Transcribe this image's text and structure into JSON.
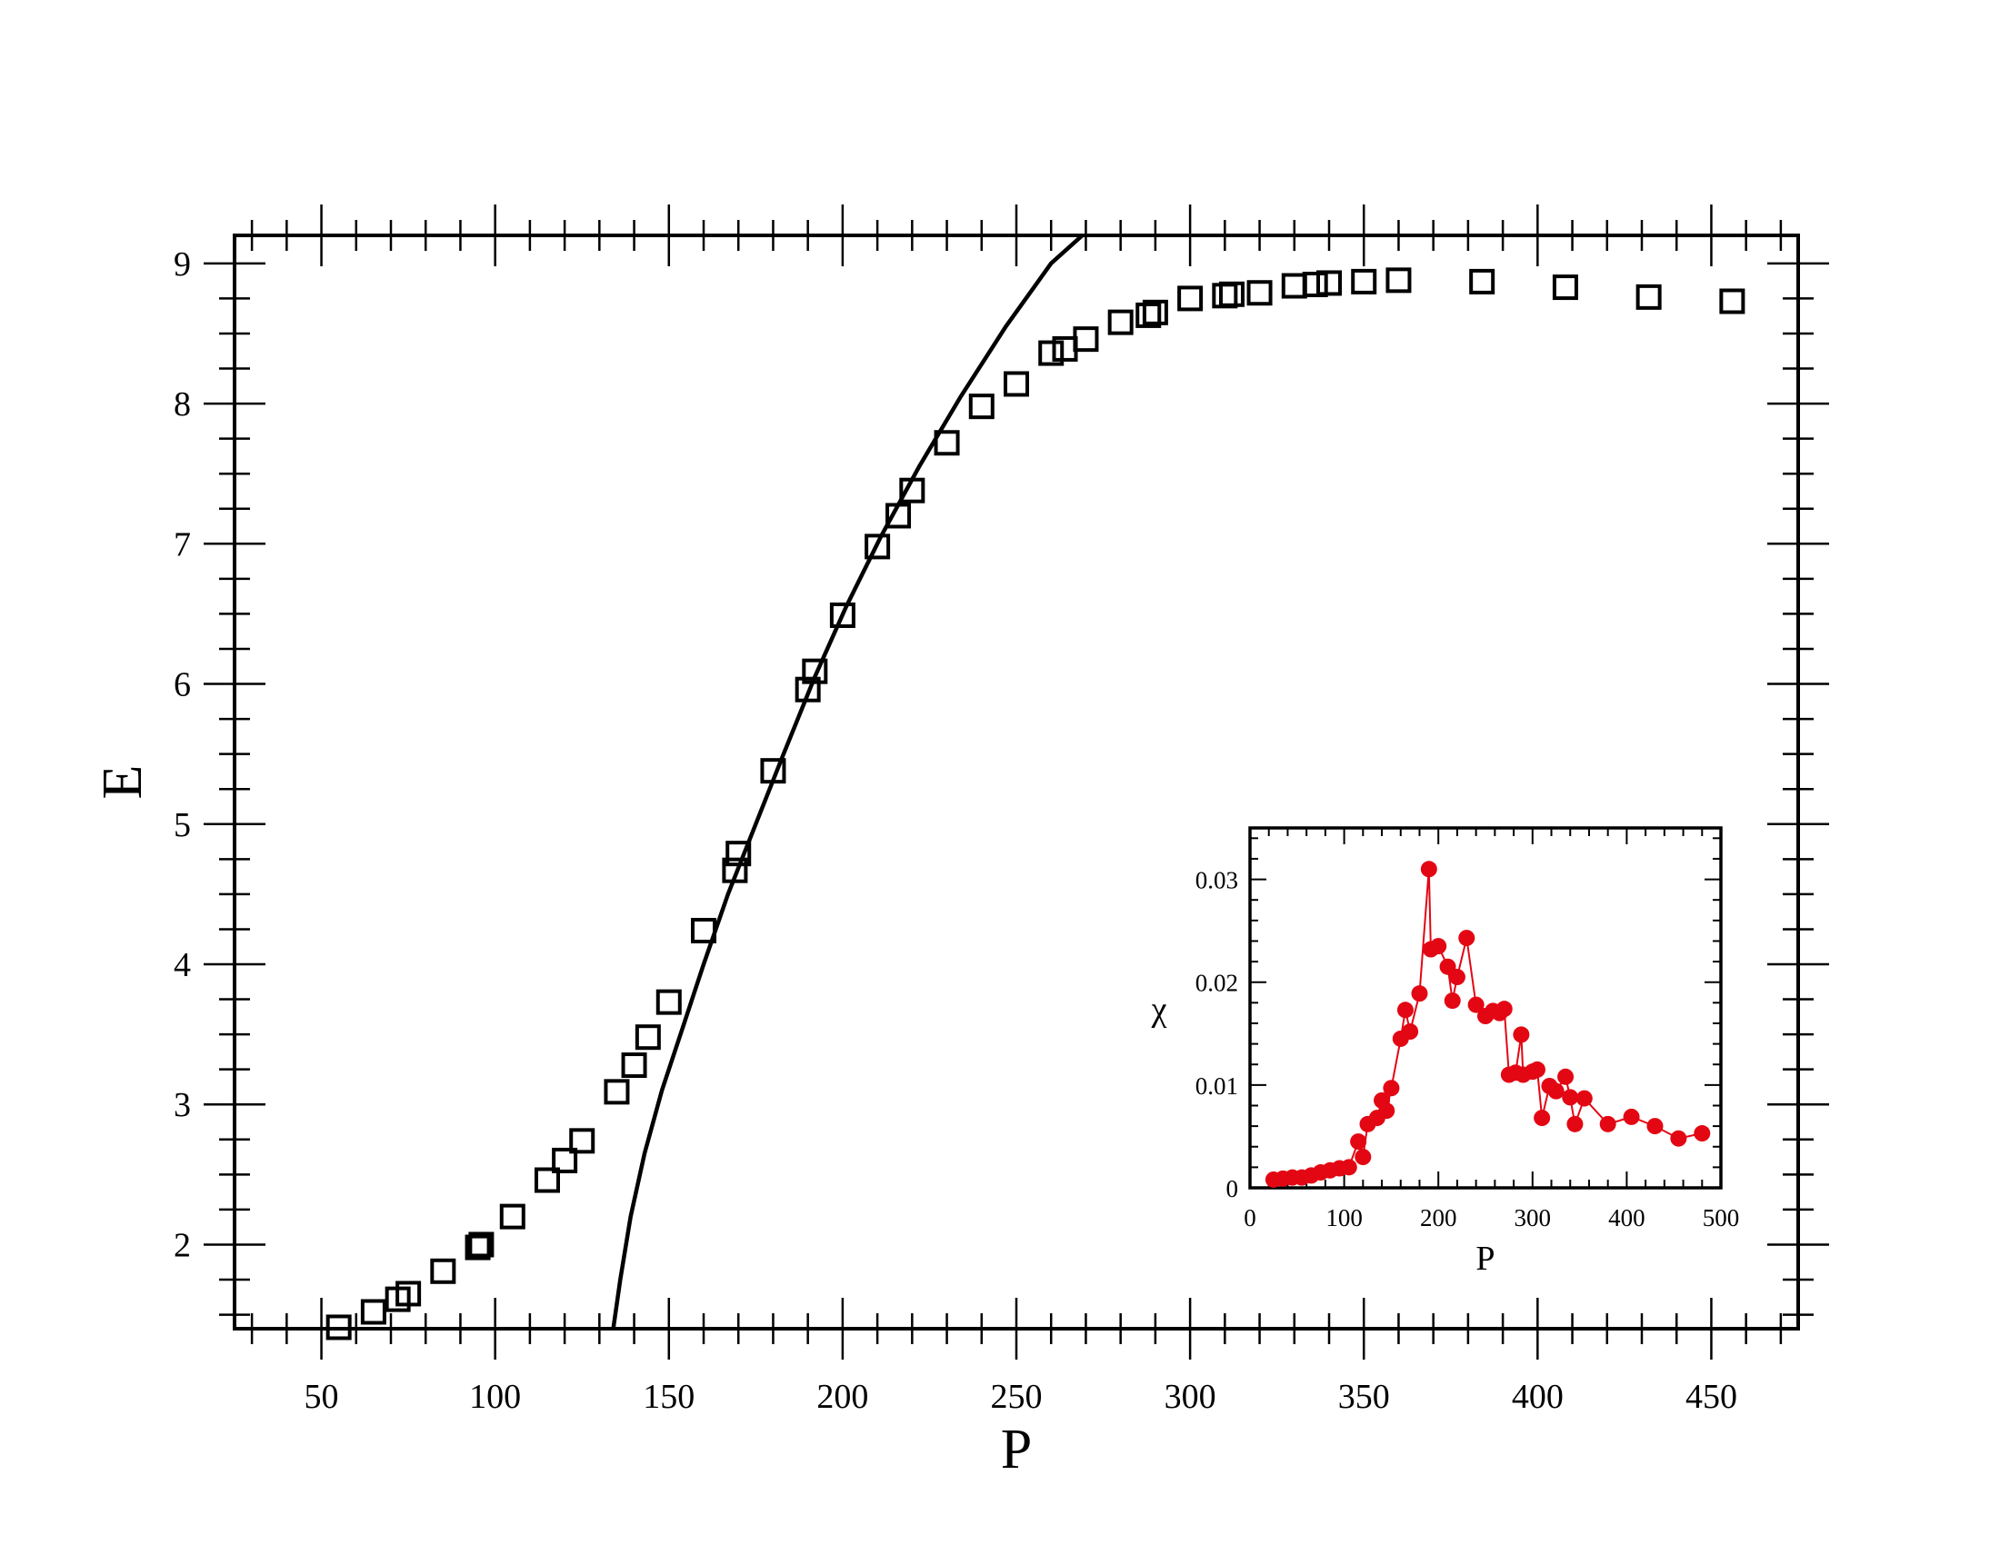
{
  "chart_data": [
    {
      "type": "scatter",
      "title": "",
      "xlabel": "P",
      "ylabel": "E",
      "xlim": [
        25,
        475
      ],
      "ylim": [
        1.4,
        9.2
      ],
      "xticks": [
        "50",
        "100",
        "150",
        "200",
        "250",
        "300",
        "350",
        "400",
        "450"
      ],
      "yticks": [
        "2",
        "3",
        "4",
        "5",
        "6",
        "7",
        "8",
        "9"
      ],
      "grid": false,
      "colors": {
        "markers": "#000000",
        "curve": "#000000"
      },
      "series": [
        {
          "marker": "open-square",
          "points": [
            [
              55,
              1.41
            ],
            [
              65,
              1.52
            ],
            [
              72,
              1.61
            ],
            [
              75,
              1.65
            ],
            [
              85,
              1.81
            ],
            [
              95,
              1.98
            ],
            [
              96,
              2.0
            ],
            [
              105,
              2.2
            ],
            [
              115,
              2.46
            ],
            [
              120,
              2.6
            ],
            [
              125,
              2.74
            ],
            [
              135,
              3.09
            ],
            [
              140,
              3.28
            ],
            [
              144,
              3.48
            ],
            [
              150,
              3.73
            ],
            [
              160,
              4.24
            ],
            [
              169,
              4.67
            ],
            [
              170,
              4.79
            ],
            [
              180,
              5.38
            ],
            [
              190,
              5.96
            ],
            [
              192,
              6.09
            ],
            [
              200,
              6.49
            ],
            [
              210,
              6.98
            ],
            [
              216,
              7.2
            ],
            [
              220,
              7.38
            ],
            [
              230,
              7.72
            ],
            [
              240,
              7.98
            ],
            [
              250,
              8.14
            ],
            [
              260,
              8.36
            ],
            [
              264,
              8.39
            ],
            [
              270,
              8.46
            ],
            [
              280,
              8.58
            ],
            [
              288,
              8.63
            ],
            [
              290,
              8.65
            ],
            [
              300,
              8.75
            ],
            [
              310,
              8.77
            ],
            [
              312,
              8.78
            ],
            [
              320,
              8.79
            ],
            [
              330,
              8.84
            ],
            [
              336,
              8.85
            ],
            [
              340,
              8.86
            ],
            [
              350,
              8.87
            ],
            [
              360,
              8.88
            ],
            [
              384,
              8.87
            ],
            [
              408,
              8.83
            ],
            [
              432,
              8.76
            ],
            [
              456,
              8.73
            ]
          ]
        },
        {
          "marker": "none",
          "line": "solid",
          "points": [
            [
              134,
              1.4
            ],
            [
              136,
              1.75
            ],
            [
              139,
              2.2
            ],
            [
              143,
              2.65
            ],
            [
              148,
              3.1
            ],
            [
              154,
              3.55
            ],
            [
              160,
              4.0
            ],
            [
              167,
              4.5
            ],
            [
              175,
              5.0
            ],
            [
              183,
              5.5
            ],
            [
              192,
              6.05
            ],
            [
              201,
              6.55
            ],
            [
              211,
              7.05
            ],
            [
              222,
              7.55
            ],
            [
              234,
              8.05
            ],
            [
              247,
              8.55
            ],
            [
              260,
              9.0
            ],
            [
              269,
              9.2
            ]
          ]
        }
      ]
    },
    {
      "type": "line",
      "inset": true,
      "title": "",
      "xlabel": "P",
      "ylabel": "χ",
      "xlim": [
        0,
        500
      ],
      "ylim": [
        0,
        0.035
      ],
      "xticks": [
        "0",
        "100",
        "200",
        "300",
        "400",
        "500"
      ],
      "yticks": [
        "0",
        "0.01",
        "0.02",
        "0.03"
      ],
      "grid": false,
      "colors": {
        "markers": "#e30613",
        "line": "#e30613"
      },
      "series": [
        {
          "marker": "filled-circle",
          "points": [
            [
              25,
              0.0008
            ],
            [
              35,
              0.0009
            ],
            [
              45,
              0.001
            ],
            [
              55,
              0.001
            ],
            [
              65,
              0.0012
            ],
            [
              75,
              0.0015
            ],
            [
              85,
              0.0017
            ],
            [
              95,
              0.0019
            ],
            [
              105,
              0.002
            ],
            [
              115,
              0.0045
            ],
            [
              120,
              0.003
            ],
            [
              125,
              0.0062
            ],
            [
              135,
              0.0068
            ],
            [
              140,
              0.0085
            ],
            [
              145,
              0.0075
            ],
            [
              150,
              0.0097
            ],
            [
              160,
              0.0145
            ],
            [
              165,
              0.0173
            ],
            [
              170,
              0.0152
            ],
            [
              180,
              0.0189
            ],
            [
              190,
              0.031
            ],
            [
              192,
              0.0232
            ],
            [
              200,
              0.0235
            ],
            [
              210,
              0.0215
            ],
            [
              215,
              0.0182
            ],
            [
              220,
              0.0205
            ],
            [
              230,
              0.0243
            ],
            [
              240,
              0.0178
            ],
            [
              250,
              0.0167
            ],
            [
              258,
              0.0172
            ],
            [
              265,
              0.017
            ],
            [
              270,
              0.0174
            ],
            [
              275,
              0.011
            ],
            [
              282,
              0.0112
            ],
            [
              288,
              0.0149
            ],
            [
              290,
              0.011
            ],
            [
              300,
              0.0113
            ],
            [
              305,
              0.0115
            ],
            [
              310,
              0.0068
            ],
            [
              318,
              0.0099
            ],
            [
              325,
              0.0094
            ],
            [
              335,
              0.0108
            ],
            [
              340,
              0.0088
            ],
            [
              345,
              0.0062
            ],
            [
              355,
              0.0087
            ],
            [
              380,
              0.0062
            ],
            [
              405,
              0.0069
            ],
            [
              430,
              0.006
            ],
            [
              455,
              0.0048
            ],
            [
              480,
              0.0053
            ]
          ]
        }
      ]
    }
  ]
}
